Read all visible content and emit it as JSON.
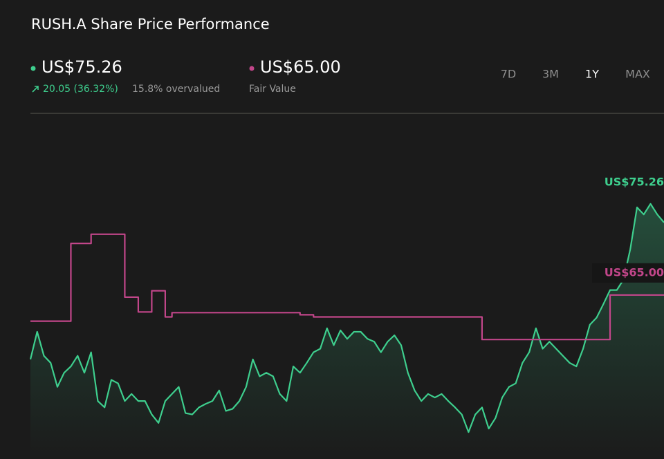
{
  "header": {
    "title": "RUSH.A Share Price Performance",
    "price": "US$75.26",
    "change": "20.05 (36.32%)",
    "valuation": "15.8% overvalued",
    "fair_value": "US$65.00",
    "fair_value_label": "Fair Value",
    "ranges": [
      "7D",
      "3M",
      "1Y",
      "MAX"
    ],
    "active_range": "1Y"
  },
  "chart_data": {
    "type": "line",
    "ylim": [
      41.8,
      90.6
    ],
    "series": [
      {
        "name": "Share Price",
        "color": "#3ecf8e",
        "end_label": "US$75.26",
        "area": true,
        "values": [
          55.9,
          59.8,
          56.4,
          55.4,
          52.0,
          54.0,
          54.9,
          56.4,
          54.0,
          56.9,
          50.0,
          49.1,
          53.0,
          52.5,
          50.0,
          51.0,
          50.0,
          50.0,
          48.1,
          46.9,
          50.0,
          51.0,
          52.0,
          48.3,
          48.1,
          49.1,
          49.6,
          50.0,
          51.5,
          48.6,
          48.9,
          50.0,
          52.0,
          55.9,
          53.5,
          54.0,
          53.5,
          51.0,
          50.0,
          54.9,
          54.0,
          55.4,
          56.9,
          57.4,
          60.3,
          57.9,
          60.0,
          58.8,
          59.8,
          59.8,
          58.8,
          58.4,
          56.9,
          58.4,
          59.3,
          57.9,
          54.0,
          51.5,
          50.0,
          51.0,
          50.5,
          51.0,
          50.0,
          49.1,
          48.1,
          45.6,
          48.1,
          49.1,
          46.1,
          47.6,
          50.5,
          52.0,
          52.5,
          55.4,
          56.9,
          60.3,
          57.4,
          58.4,
          57.4,
          56.4,
          55.4,
          54.9,
          57.4,
          60.8,
          61.8,
          63.7,
          65.7,
          65.7,
          67.2,
          71.5,
          77.4,
          76.4,
          77.9,
          76.4,
          75.26
        ]
      },
      {
        "name": "Fair Value",
        "color": "#c2468a",
        "end_label": "US$65.00",
        "step": true,
        "values": [
          61.3,
          61.3,
          61.3,
          61.3,
          61.3,
          61.3,
          72.3,
          72.3,
          72.3,
          73.6,
          73.6,
          73.6,
          73.6,
          73.6,
          64.7,
          64.7,
          62.6,
          62.6,
          65.6,
          65.6,
          61.9,
          62.5,
          62.5,
          62.5,
          62.5,
          62.5,
          62.5,
          62.5,
          62.5,
          62.5,
          62.5,
          62.5,
          62.5,
          62.5,
          62.5,
          62.5,
          62.5,
          62.5,
          62.5,
          62.5,
          62.2,
          62.2,
          61.9,
          61.9,
          61.9,
          61.9,
          61.9,
          61.9,
          61.9,
          61.9,
          61.9,
          61.9,
          61.9,
          61.9,
          61.9,
          61.9,
          61.9,
          61.9,
          61.9,
          61.9,
          61.9,
          61.9,
          61.9,
          61.9,
          61.9,
          61.9,
          61.9,
          58.7,
          58.7,
          58.7,
          58.7,
          58.7,
          58.7,
          58.7,
          58.7,
          58.7,
          58.7,
          58.7,
          58.7,
          58.7,
          58.7,
          58.7,
          58.7,
          58.7,
          58.7,
          58.7,
          65,
          65,
          65,
          65,
          65,
          65,
          65,
          65,
          65
        ]
      }
    ]
  }
}
